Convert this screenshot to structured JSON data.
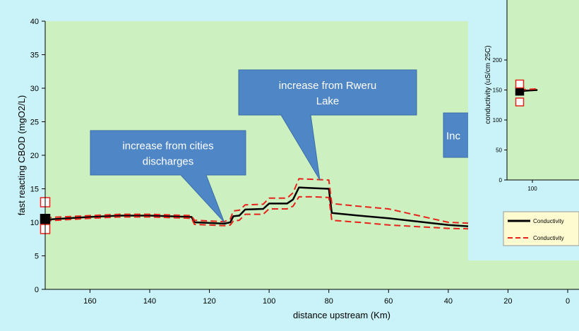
{
  "colors": {
    "outer_background": "#c9f3f8",
    "plot_background": "#ccf0c0",
    "callout_fill": "#4f86c6",
    "callout_text": "#ffffff",
    "model_line": "#000000",
    "band_line": "#e8231b"
  },
  "chart_data": [
    {
      "type": "line",
      "title": "",
      "xlabel": "distance upstream (Km)",
      "ylabel": "fast reacting CBOD (mgO2/L)",
      "xlim": [
        175,
        0
      ],
      "ylim": [
        0,
        40
      ],
      "x_reversed": true,
      "grid": false,
      "x_ticks": [
        160,
        140,
        120,
        100,
        80,
        60,
        40,
        20,
        0
      ],
      "y_ticks": [
        0,
        5,
        10,
        15,
        20,
        25,
        30,
        35,
        40
      ],
      "series": [
        {
          "style": "solid-black",
          "points": [
            [
              175,
              10.4
            ],
            [
              160,
              10.8
            ],
            [
              150,
              11.0
            ],
            [
              140,
              11.0
            ],
            [
              126,
              10.8
            ],
            [
              125,
              10.0
            ],
            [
              120,
              9.9
            ],
            [
              115,
              9.8
            ],
            [
              113,
              10.0
            ],
            [
              112,
              10.9
            ],
            [
              110,
              11.0
            ],
            [
              108,
              11.9
            ],
            [
              102,
              12.0
            ],
            [
              100,
              12.8
            ],
            [
              94,
              12.8
            ],
            [
              92,
              13.4
            ],
            [
              90,
              15.2
            ],
            [
              85,
              15.1
            ],
            [
              80,
              15.0
            ],
            [
              79,
              11.4
            ],
            [
              70,
              11.0
            ],
            [
              60,
              10.6
            ],
            [
              40,
              9.6
            ],
            [
              30,
              9.3
            ],
            [
              20,
              9.6
            ]
          ]
        },
        {
          "style": "dashed-red-upper",
          "points": [
            [
              175,
              10.7
            ],
            [
              160,
              11.0
            ],
            [
              150,
              11.2
            ],
            [
              140,
              11.2
            ],
            [
              126,
              11.0
            ],
            [
              125,
              10.3
            ],
            [
              120,
              10.2
            ],
            [
              115,
              10.1
            ],
            [
              113,
              10.5
            ],
            [
              112,
              11.7
            ],
            [
              110,
              11.8
            ],
            [
              108,
              12.6
            ],
            [
              102,
              12.7
            ],
            [
              100,
              13.6
            ],
            [
              94,
              13.6
            ],
            [
              92,
              14.4
            ],
            [
              90,
              16.5
            ],
            [
              85,
              16.4
            ],
            [
              80,
              16.3
            ],
            [
              79,
              12.8
            ],
            [
              70,
              12.4
            ],
            [
              60,
              12.0
            ],
            [
              40,
              10.0
            ],
            [
              30,
              9.8
            ],
            [
              20,
              10.0
            ]
          ]
        },
        {
          "style": "dashed-red-lower",
          "points": [
            [
              175,
              10.2
            ],
            [
              160,
              10.6
            ],
            [
              150,
              10.8
            ],
            [
              140,
              10.8
            ],
            [
              126,
              10.6
            ],
            [
              125,
              9.7
            ],
            [
              120,
              9.6
            ],
            [
              115,
              9.5
            ],
            [
              113,
              9.6
            ],
            [
              112,
              10.2
            ],
            [
              110,
              10.3
            ],
            [
              108,
              11.2
            ],
            [
              102,
              11.2
            ],
            [
              100,
              12.0
            ],
            [
              94,
              12.0
            ],
            [
              92,
              12.4
            ],
            [
              90,
              13.8
            ],
            [
              85,
              13.8
            ],
            [
              80,
              13.7
            ],
            [
              79,
              10.3
            ],
            [
              70,
              10.0
            ],
            [
              60,
              9.6
            ],
            [
              40,
              9.1
            ],
            [
              30,
              9.0
            ],
            [
              20,
              9.2
            ]
          ]
        }
      ],
      "observations": [
        {
          "x": 175,
          "y": 10.5,
          "marker": "filled-black-square"
        },
        {
          "x": 175,
          "y": 13.0,
          "marker": "open-red-square"
        },
        {
          "x": 175,
          "y": 9.0,
          "marker": "open-red-square"
        }
      ],
      "annotations": [
        {
          "id": "cities",
          "lines": [
            "increase from cities",
            "discharges"
          ],
          "points_to": [
            115,
            10.0
          ]
        },
        {
          "id": "rweru",
          "lines": [
            "increase from Rweru",
            "Lake"
          ],
          "points_to": [
            83,
            16.3
          ]
        },
        {
          "id": "partial",
          "lines": [
            "Inc"
          ],
          "points_to": null
        }
      ]
    },
    {
      "type": "line",
      "title": "",
      "xlabel": "",
      "ylabel": "conductivity (uS/cm 25C)",
      "y_ticks": [
        0,
        50,
        100,
        150,
        200
      ],
      "x_ticks": [
        100
      ],
      "grid": false,
      "series": [
        {
          "name": "Conductivity",
          "style": "solid-black",
          "points": [
            [
              110,
              148
            ],
            [
              104,
              149
            ],
            [
              96,
              150
            ]
          ]
        },
        {
          "name": "Conductivity",
          "style": "dashed-red",
          "points": [
            [
              110,
              150
            ],
            [
              104,
              151
            ],
            [
              96,
              152
            ]
          ]
        }
      ],
      "observations": [
        {
          "x": 110,
          "y": 148,
          "marker": "filled-black-square"
        },
        {
          "x": 110,
          "y": 160,
          "marker": "open-red-square"
        },
        {
          "x": 110,
          "y": 130,
          "marker": "open-red-square"
        }
      ],
      "legend": {
        "placement": "bottom",
        "entries": [
          "Conductivity",
          "Conductivity"
        ]
      }
    }
  ]
}
